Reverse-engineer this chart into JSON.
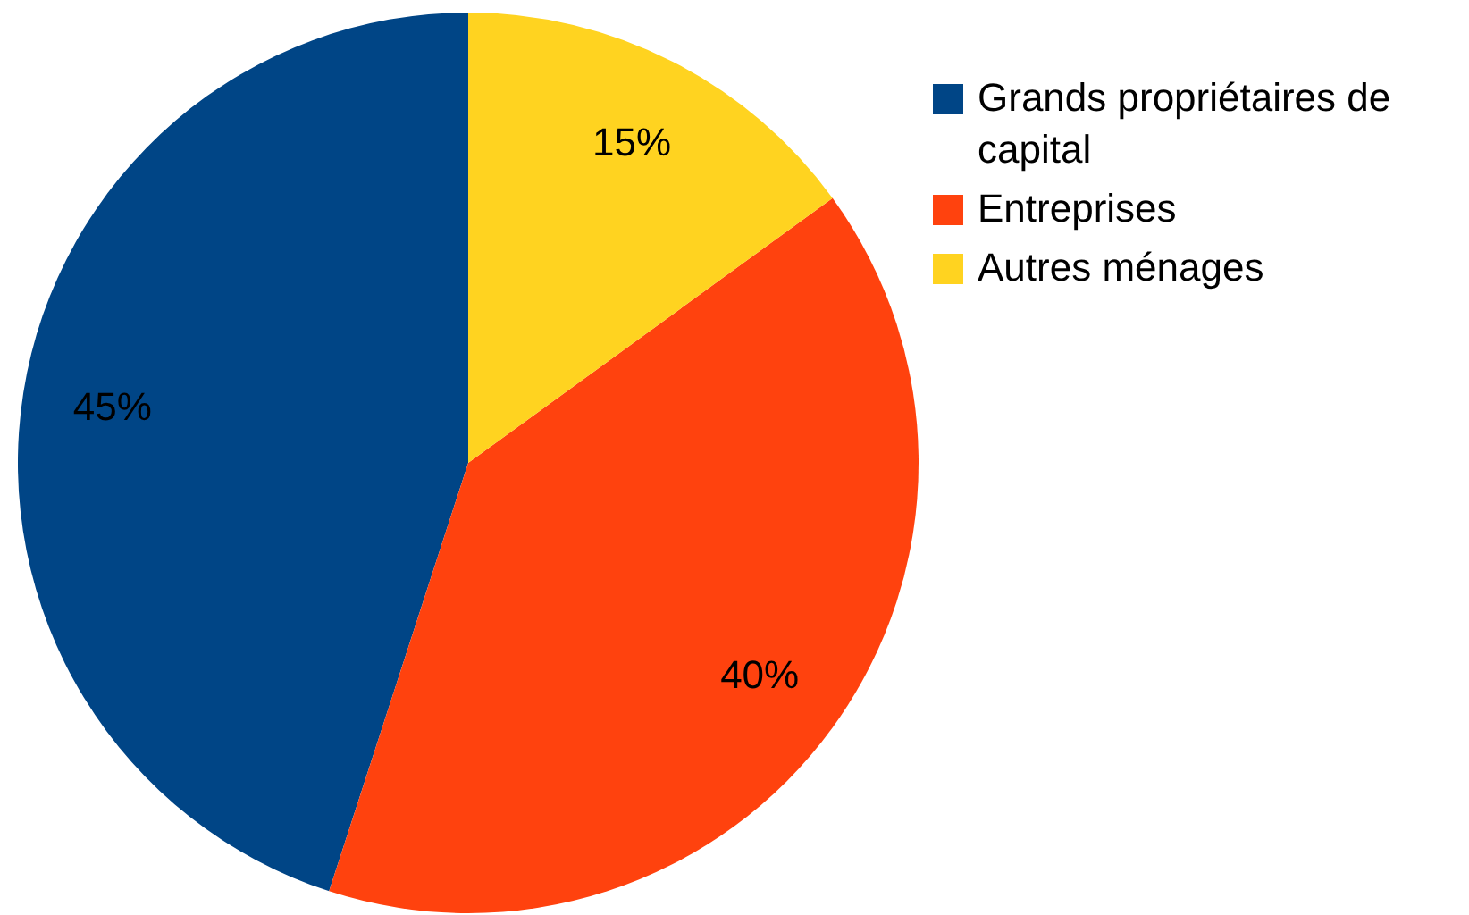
{
  "chart_data": {
    "type": "pie",
    "categories": [
      "Grands propriétaires de capital",
      "Entreprises",
      "Autres ménages"
    ],
    "values": [
      45,
      40,
      15
    ],
    "value_labels": [
      "45%",
      "40%",
      "15%"
    ],
    "colors": [
      "#004586",
      "#ff420e",
      "#ffd320"
    ],
    "legend": "top right"
  }
}
